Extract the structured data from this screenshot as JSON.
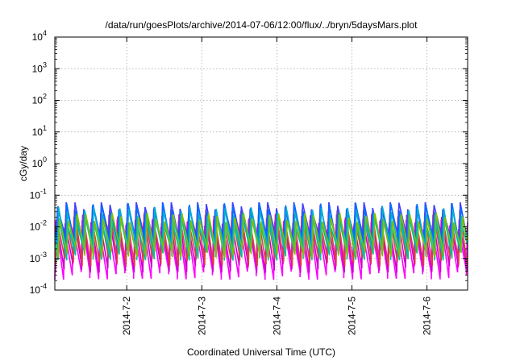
{
  "chart_data": {
    "type": "line",
    "title": "/data/run/goesPlots/archive/2014-07-06/12:00/flux/../bryn/5daysMars.plot",
    "xlabel": "Coordinated Universal Time (UTC)",
    "ylabel": "cGy/day",
    "xlim": [
      "2014-07-01T01:00",
      "2014-07-06T13:00"
    ],
    "ylim": [
      0.0001,
      10000
    ],
    "yscale": "log",
    "grid": true,
    "legend": "none",
    "x_ticks": [
      "2014-7-2",
      "2014-7-3",
      "2014-7-4",
      "2014-7-5",
      "2014-7-6"
    ],
    "y_ticks": [
      {
        "base": "10",
        "exp": "-4"
      },
      {
        "base": "10",
        "exp": "-3"
      },
      {
        "base": "10",
        "exp": "-2"
      },
      {
        "base": "10",
        "exp": "-1"
      },
      {
        "base": "10",
        "exp": "0"
      },
      {
        "base": "10",
        "exp": "1"
      },
      {
        "base": "10",
        "exp": "2"
      },
      {
        "base": "10",
        "exp": "3"
      },
      {
        "base": "10",
        "exp": "4"
      }
    ],
    "pattern": {
      "description_free_values": true,
      "cycle_hours": 2.8,
      "series": [
        {
          "color": "#ff00ff",
          "peak": 0.012,
          "trough": 0.0003
        },
        {
          "color": "#cc00cc",
          "peak": 0.018,
          "trough": 0.0005
        },
        {
          "color": "#e04040",
          "peak": 0.025,
          "trough": 0.0008
        },
        {
          "color": "#4040ff",
          "peak": 0.05,
          "trough": 0.004
        },
        {
          "color": "#0070ff",
          "peak": 0.04,
          "trough": 0.003
        },
        {
          "color": "#00b0d0",
          "peak": 0.03,
          "trough": 0.002
        },
        {
          "color": "#00c0a0",
          "peak": 0.015,
          "trough": 0.0012
        },
        {
          "color": "#80c000",
          "peak": 0.02,
          "trough": 0.0015
        }
      ]
    }
  }
}
